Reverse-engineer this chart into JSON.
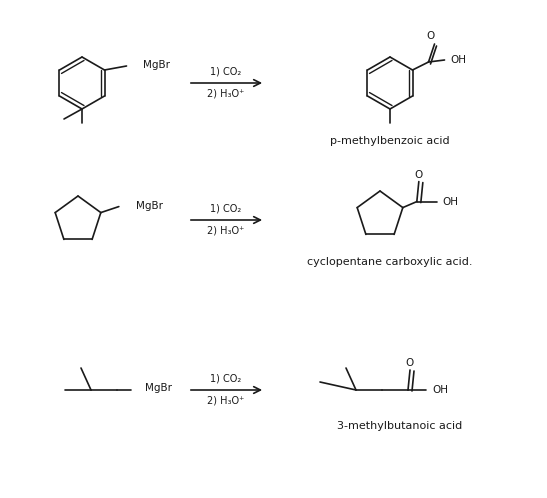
{
  "background_color": "#ffffff",
  "figure_width": 5.47,
  "figure_height": 4.98,
  "dpi": 100,
  "reactions": [
    {
      "row": 0,
      "reagent_label": "1) CO₂\n2) H₃O⁺",
      "product_name": "p-methylbenzoic acid"
    },
    {
      "row": 1,
      "reagent_label": "1) CO₂\n2) H₃O⁺",
      "product_name": "cyclopentane carboxylic acid."
    },
    {
      "row": 2,
      "reagent_label": "1) CO₂\n2) H₃O⁺",
      "product_name": "3-methylbutanoic acid"
    }
  ],
  "line_color": "#1a1a1a",
  "text_color": "#1a1a1a",
  "font_size": 7.5,
  "label_font_size": 8.0,
  "arrow_color": "#1a1a1a"
}
